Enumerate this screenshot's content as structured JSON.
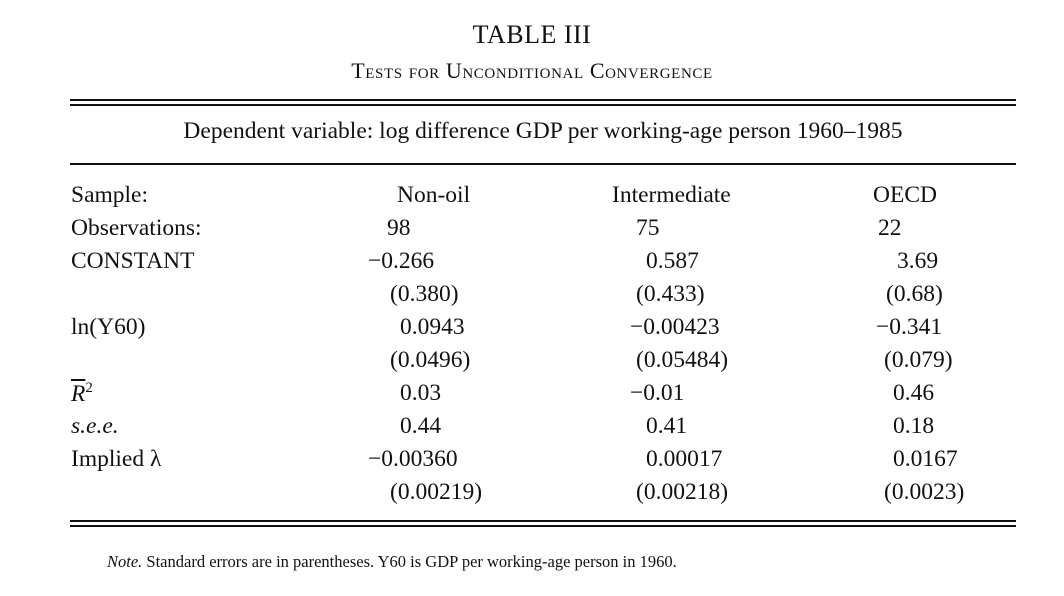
{
  "table": {
    "title": "TABLE III",
    "subtitle": "Tests for Unconditional Convergence",
    "dependent_variable": "Dependent variable: log difference GDP per working-age person 1960–1985",
    "rows": [
      {
        "label": "Sample:",
        "c1": "Non-oil",
        "c2": "Intermediate",
        "c3": "OECD"
      },
      {
        "label": "Observations:",
        "c1": "98",
        "c2": "75",
        "c3": "22"
      },
      {
        "label": "CONSTANT",
        "c1": "−0.266",
        "c2": "0.587",
        "c3": "3.69"
      },
      {
        "label": "",
        "c1": "(0.380)",
        "c2": "(0.433)",
        "c3": "(0.68)"
      },
      {
        "label": "ln(Y60)",
        "c1": "0.0943",
        "c2": "−0.00423",
        "c3": "−0.341"
      },
      {
        "label": "",
        "c1": "(0.0496)",
        "c2": "(0.05484)",
        "c3": "(0.079)"
      },
      {
        "label_main": "R",
        "label_sup": "2",
        "c1": "0.03",
        "c2": "−0.01",
        "c3": "0.46"
      },
      {
        "label": "s.e.e.",
        "c1": "0.44",
        "c2": "0.41",
        "c3": "0.18"
      },
      {
        "label": "Implied λ",
        "c1": "−0.00360",
        "c2": "0.00017",
        "c3": "0.0167"
      },
      {
        "label": "",
        "c1": "(0.00219)",
        "c2": "(0.00218)",
        "c3": "(0.0023)"
      }
    ],
    "note_label": "Note.",
    "note_text": " Standard errors are in parentheses. Y60 is GDP per working-age person in 1960."
  }
}
